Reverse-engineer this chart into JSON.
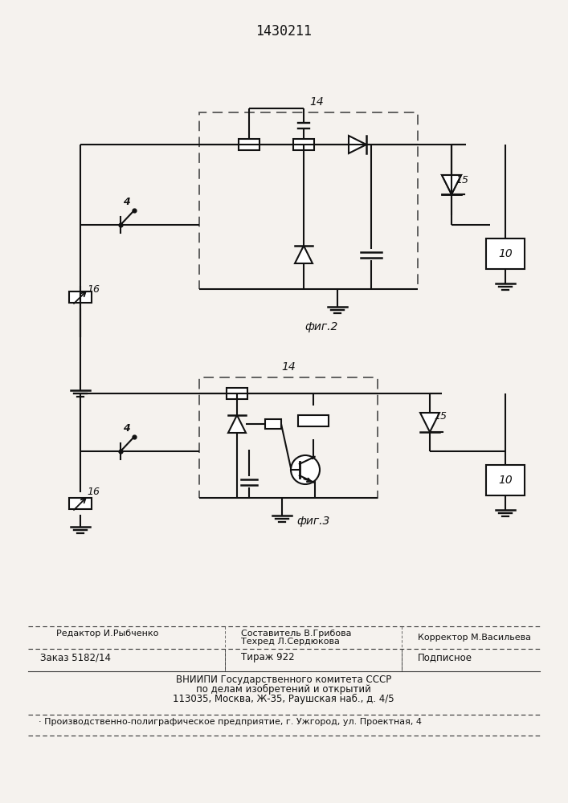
{
  "title": "1430211",
  "fig2_label": "14",
  "fig2_caption": "фиг.2",
  "fig3_label": "14",
  "fig3_caption": "фиг.3",
  "label_4_f2": "4",
  "label_16_f2": "16",
  "label_15_f2": "15",
  "label_10_f2": "10",
  "label_4_f3": "4",
  "label_16_f3": "16",
  "label_15_f3": "15",
  "label_10_f3": "10",
  "footer_editor": "Редактор И.Рыбченко",
  "footer_compiler": "Составитель В.Грибова",
  "footer_tech": "Техред Л.Сердюкова",
  "footer_corrector": "Корректор М.Васильева",
  "footer_order": "Заказ 5182/14",
  "footer_tirazh": "Тираж 922",
  "footer_podpisnoe": "Подписное",
  "footer_vniipi1": "ВНИИПИ Государственного комитета СССР",
  "footer_vniipi2": "по делам изобретений и открытий",
  "footer_vniipi3": "113035, Москва, Ж-35, Раушская наб., д. 4/5",
  "footer_production": "Производственно-полиграфическое предприятие, г. Ужгород, ул. Проектная, 4",
  "bg_color": "#f5f2ee",
  "line_color": "#111111"
}
